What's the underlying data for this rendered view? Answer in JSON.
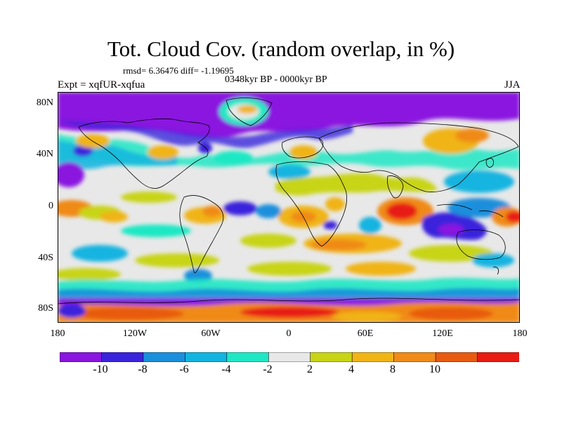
{
  "title": "Tot. Cloud Cov. (random overlap, in %)",
  "stats": "rmsd= 6.36476 diff= -1.19695",
  "period": "0348kyr BP - 0000kyr BP",
  "experiment": "Expt = xqfUR-xqfua",
  "season": "JJA",
  "lat_ticks": [
    "80N",
    "40N",
    "0",
    "40S",
    "80S"
  ],
  "lon_ticks": [
    "180",
    "120W",
    "60W",
    "0",
    "60E",
    "120E",
    "180"
  ],
  "colorbar": {
    "labels": [
      "-10",
      "-8",
      "-6",
      "-4",
      "-2",
      "2",
      "4",
      "8",
      "10"
    ],
    "colors": [
      "#8a16e0",
      "#3a24dc",
      "#1a8fdc",
      "#12b4e0",
      "#1ee8c4",
      "#e8e8e8",
      "#c8d414",
      "#f0b414",
      "#f08a18",
      "#e85a10",
      "#e81c12"
    ]
  },
  "colors": {
    "ocean_background": "#e8e8e8",
    "coastline": "#000000"
  }
}
